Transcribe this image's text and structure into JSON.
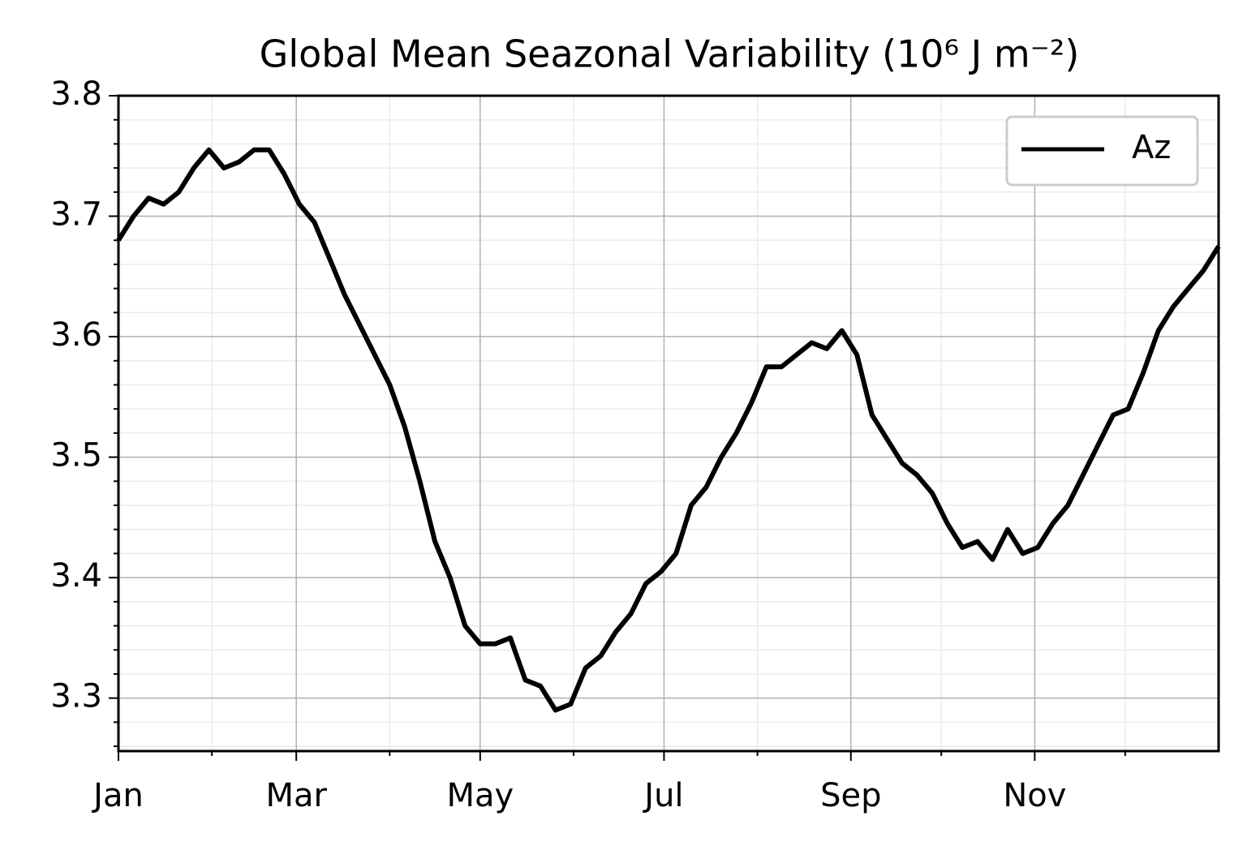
{
  "chart_data": {
    "type": "line",
    "title": "Global Mean Seazonal Variability (10⁶ J m⁻²)",
    "x": [
      0,
      5,
      10,
      15,
      20,
      25,
      30,
      35,
      40,
      45,
      50,
      55,
      60,
      65,
      70,
      75,
      80,
      85,
      90,
      95,
      100,
      105,
      110,
      115,
      120,
      125,
      130,
      135,
      140,
      145,
      150,
      155,
      160,
      165,
      170,
      175,
      180,
      185,
      190,
      195,
      200,
      205,
      210,
      215,
      220,
      225,
      230,
      235,
      240,
      245,
      250,
      255,
      260,
      265,
      270,
      275,
      280,
      285,
      290,
      295,
      300,
      305,
      310,
      315,
      320,
      325,
      330,
      335,
      340,
      345,
      350,
      355,
      360,
      365
    ],
    "series": [
      {
        "name": "Az",
        "color": "#000000",
        "values": [
          3.68,
          3.7,
          3.715,
          3.71,
          3.72,
          3.74,
          3.755,
          3.74,
          3.745,
          3.755,
          3.755,
          3.735,
          3.71,
          3.695,
          3.665,
          3.635,
          3.61,
          3.585,
          3.56,
          3.525,
          3.48,
          3.43,
          3.4,
          3.36,
          3.345,
          3.345,
          3.35,
          3.315,
          3.31,
          3.29,
          3.295,
          3.325,
          3.335,
          3.355,
          3.37,
          3.395,
          3.405,
          3.42,
          3.46,
          3.475,
          3.5,
          3.52,
          3.545,
          3.575,
          3.575,
          3.585,
          3.595,
          3.59,
          3.605,
          3.585,
          3.535,
          3.515,
          3.495,
          3.485,
          3.47,
          3.445,
          3.425,
          3.43,
          3.415,
          3.44,
          3.42,
          3.425,
          3.445,
          3.46,
          3.485,
          3.51,
          3.535,
          3.54,
          3.57,
          3.605,
          3.625,
          3.64,
          3.655,
          3.675
        ]
      }
    ],
    "xlim": [
      0,
      365
    ],
    "xticks": [
      {
        "value": 0,
        "label": "Jan"
      },
      {
        "value": 59,
        "label": "Mar"
      },
      {
        "value": 120,
        "label": "May"
      },
      {
        "value": 181,
        "label": "Jul"
      },
      {
        "value": 243,
        "label": "Sep"
      },
      {
        "value": 304,
        "label": "Nov"
      }
    ],
    "xminorticks": [
      31,
      90,
      151,
      212,
      273,
      334
    ],
    "ylim": [
      3.256,
      3.8
    ],
    "yticks": [
      3.3,
      3.4,
      3.5,
      3.6,
      3.7,
      3.8
    ],
    "yminorticks": [
      3.26,
      3.28,
      3.32,
      3.34,
      3.36,
      3.38,
      3.42,
      3.44,
      3.46,
      3.48,
      3.52,
      3.54,
      3.56,
      3.58,
      3.62,
      3.64,
      3.66,
      3.68,
      3.72,
      3.74,
      3.76,
      3.78
    ],
    "grid": true,
    "legend": "upper right"
  }
}
